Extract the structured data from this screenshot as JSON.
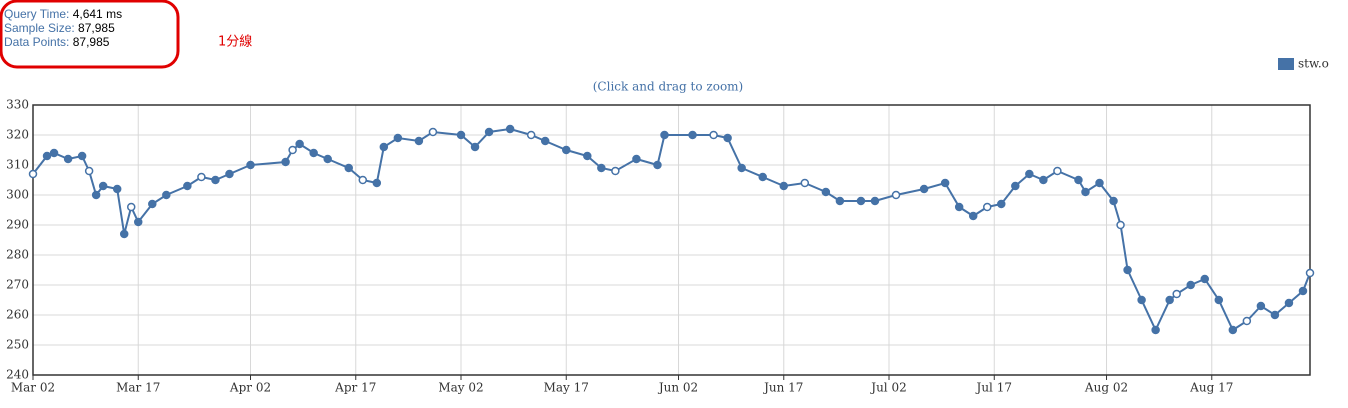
{
  "info": [
    {
      "label": "Query Time:",
      "value": "4,641 ms"
    },
    {
      "label": "Sample Size:",
      "value": "87,985"
    },
    {
      "label": "Data Points:",
      "value": "87,985"
    }
  ],
  "note": "1分線",
  "chart_data": {
    "type": "line",
    "subtitle": "(Click and drag to zoom)",
    "x": [
      "Mar 02",
      "Mar 04",
      "Mar 05",
      "Mar 07",
      "Mar 09",
      "Mar 10",
      "Mar 11",
      "Mar 12",
      "Mar 14",
      "Mar 15",
      "Mar 16",
      "Mar 17",
      "Mar 19",
      "Mar 21",
      "Mar 24",
      "Mar 26",
      "Mar 28",
      "Mar 30",
      "Apr 02",
      "Apr 07",
      "Apr 08",
      "Apr 09",
      "Apr 11",
      "Apr 13",
      "Apr 16",
      "Apr 18",
      "Apr 20",
      "Apr 21",
      "Apr 23",
      "Apr 26",
      "Apr 28",
      "May 02",
      "May 04",
      "May 06",
      "May 09",
      "May 12",
      "May 14",
      "May 17",
      "May 20",
      "May 22",
      "May 24",
      "May 27",
      "May 30",
      "May 31",
      "Jun 04",
      "Jun 07",
      "Jun 09",
      "Jun 11",
      "Jun 14",
      "Jun 17",
      "Jun 20",
      "Jun 23",
      "Jun 25",
      "Jun 28",
      "Jun 30",
      "Jul 03",
      "Jul 07",
      "Jul 10",
      "Jul 12",
      "Jul 14",
      "Jul 16",
      "Jul 18",
      "Jul 20",
      "Jul 22",
      "Jul 24",
      "Jul 26",
      "Jul 29",
      "Jul 30",
      "Aug 01",
      "Aug 03",
      "Aug 04",
      "Aug 05",
      "Aug 07",
      "Aug 09",
      "Aug 11",
      "Aug 12",
      "Aug 14",
      "Aug 16",
      "Aug 18",
      "Aug 20",
      "Aug 22",
      "Aug 24",
      "Aug 26",
      "Aug 28",
      "Aug 30",
      "Aug 31"
    ],
    "series": [
      {
        "name": "stw.o",
        "color": "#4572a7",
        "values": [
          307,
          313,
          314,
          312,
          313,
          308,
          300,
          303,
          302,
          287,
          296,
          291,
          297,
          300,
          303,
          306,
          305,
          307,
          310,
          311,
          315,
          317,
          314,
          312,
          309,
          305,
          304,
          316,
          319,
          318,
          321,
          320,
          316,
          321,
          322,
          320,
          318,
          315,
          313,
          309,
          308,
          312,
          310,
          320,
          320,
          320,
          319,
          309,
          306,
          303,
          304,
          301,
          298,
          298,
          298,
          300,
          302,
          304,
          296,
          293,
          296,
          297,
          303,
          307,
          305,
          308,
          305,
          301,
          304,
          298,
          290,
          275,
          265,
          255,
          265,
          267,
          270,
          272,
          265,
          255,
          258,
          263,
          260,
          264,
          268,
          274
        ]
      }
    ],
    "xlim": [
      "Mar 02",
      "Aug 31"
    ],
    "xticks": [
      "Mar 02",
      "Mar 17",
      "Apr 02",
      "Apr 17",
      "May 02",
      "May 17",
      "Jun 02",
      "Jun 17",
      "Jul 02",
      "Jul 17",
      "Aug 02",
      "Aug 17"
    ],
    "ylim": [
      240,
      330
    ],
    "yticks": [
      240,
      250,
      260,
      270,
      280,
      290,
      300,
      310,
      320,
      330
    ],
    "grid": true,
    "legend": "top-right"
  }
}
